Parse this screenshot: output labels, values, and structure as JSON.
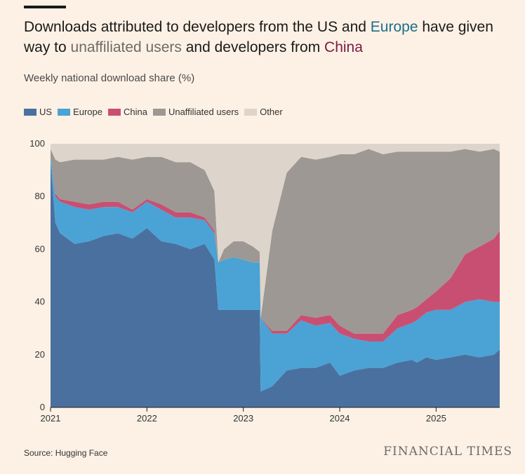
{
  "title": {
    "p1": "Downloads attributed to developers from the US and ",
    "europe": "Europe",
    "p2": " have given way to ",
    "unaffiliated": "unaffiliated users",
    "p3": " and developers from ",
    "china": "China"
  },
  "source": "Source: Hugging Face",
  "logo": "FINANCIAL TIMES",
  "colors": {
    "us": "#4a70a0",
    "europe": "#4aa3d4",
    "china": "#c94f72",
    "unaffiliated": "#9d9893",
    "other": "#ddd5cc",
    "background": "#fdf1e5"
  },
  "chart_data": {
    "type": "area",
    "stacked": true,
    "subtitle": "Weekly national download share (%)",
    "ylim": [
      0,
      100
    ],
    "yticks": [
      0,
      20,
      40,
      60,
      80,
      100
    ],
    "xlim": [
      2021.0,
      2025.66
    ],
    "xticks": [
      "2021",
      "2022",
      "2023",
      "2024",
      "2025"
    ],
    "legend_position": "top-left",
    "legend": [
      "US",
      "Europe",
      "China",
      "Unaffiliated users",
      "Other"
    ],
    "x": [
      2021.0,
      2021.05,
      2021.1,
      2021.25,
      2021.4,
      2021.55,
      2021.7,
      2021.85,
      2022.0,
      2022.15,
      2022.3,
      2022.45,
      2022.6,
      2022.7,
      2022.74,
      2022.8,
      2022.9,
      2023.0,
      2023.1,
      2023.17,
      2023.18,
      2023.3,
      2023.45,
      2023.6,
      2023.75,
      2023.9,
      2024.0,
      2024.15,
      2024.3,
      2024.45,
      2024.6,
      2024.75,
      2024.8,
      2024.9,
      2025.0,
      2025.15,
      2025.3,
      2025.45,
      2025.6,
      2025.66
    ],
    "series": [
      {
        "name": "US",
        "values": [
          93,
          70,
          66,
          62,
          63,
          65,
          66,
          64,
          68,
          63,
          62,
          60,
          62,
          56,
          37,
          37,
          37,
          37,
          37,
          37,
          6,
          8,
          14,
          15,
          15,
          17,
          12,
          14,
          15,
          15,
          17,
          18,
          17,
          19,
          18,
          19,
          20,
          19,
          20,
          22
        ]
      },
      {
        "name": "Europe",
        "values": [
          2,
          10,
          12,
          14,
          12,
          11,
          10,
          10,
          10,
          12,
          10,
          12,
          9,
          10,
          18,
          19,
          20,
          19,
          18,
          18,
          28,
          20,
          14,
          18,
          16,
          15,
          16,
          12,
          10,
          10,
          13,
          14,
          16,
          17,
          19,
          18,
          20,
          22,
          20,
          18
        ]
      },
      {
        "name": "China",
        "values": [
          0,
          1,
          1,
          2,
          2,
          2,
          2,
          1,
          1,
          2,
          2,
          2,
          1,
          1,
          0,
          0,
          0,
          0,
          0,
          0,
          0,
          1,
          1,
          2,
          3,
          3,
          3,
          2,
          3,
          3,
          5,
          5,
          5,
          5,
          7,
          12,
          18,
          20,
          24,
          27
        ]
      },
      {
        "name": "Unaffiliated users",
        "values": [
          3,
          13,
          14,
          16,
          17,
          16,
          17,
          19,
          16,
          18,
          19,
          19,
          18,
          15,
          0,
          4,
          6,
          7,
          6,
          4,
          0,
          38,
          60,
          60,
          60,
          60,
          65,
          68,
          70,
          68,
          62,
          60,
          59,
          56,
          53,
          48,
          40,
          36,
          34,
          30
        ]
      },
      {
        "name": "Other",
        "values": [
          2,
          6,
          7,
          6,
          6,
          6,
          5,
          6,
          5,
          5,
          7,
          7,
          10,
          18,
          45,
          40,
          37,
          37,
          39,
          41,
          66,
          33,
          11,
          5,
          6,
          5,
          4,
          4,
          2,
          4,
          3,
          3,
          3,
          3,
          3,
          3,
          2,
          3,
          2,
          3
        ]
      }
    ]
  }
}
